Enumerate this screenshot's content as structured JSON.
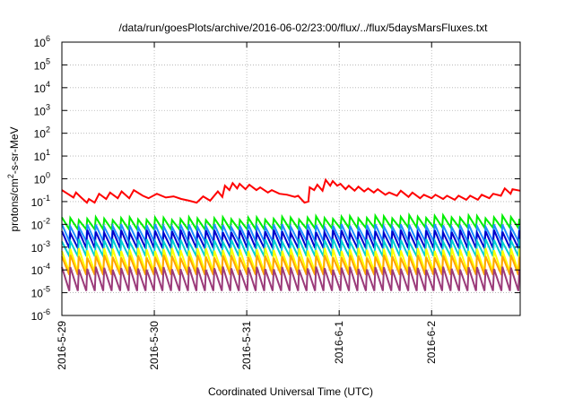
{
  "chart_data": {
    "type": "line",
    "title": "/data/run/goesPlots/archive/2016-06-02/23:00/flux/../flux/5daysMarsFluxes.txt",
    "xlabel": "Coordinated Universal Time (UTC)",
    "ylabel": {
      "prefix": "protons/cm",
      "sup": "2",
      "suffix": "-s-sr-MeV"
    },
    "y_scale": "log",
    "ylim": [
      1e-06,
      1000000.0
    ],
    "y_ticks": [
      {
        "value": 1e-06,
        "base": "10",
        "exp": "-6"
      },
      {
        "value": 1e-05,
        "base": "10",
        "exp": "-5"
      },
      {
        "value": 0.0001,
        "base": "10",
        "exp": "-4"
      },
      {
        "value": 0.001,
        "base": "10",
        "exp": "-3"
      },
      {
        "value": 0.01,
        "base": "10",
        "exp": "-2"
      },
      {
        "value": 0.1,
        "base": "10",
        "exp": "-1"
      },
      {
        "value": 1,
        "base": "10",
        "exp": "0"
      },
      {
        "value": 10.0,
        "base": "10",
        "exp": "1"
      },
      {
        "value": 100.0,
        "base": "10",
        "exp": "2"
      },
      {
        "value": 1000.0,
        "base": "10",
        "exp": "3"
      },
      {
        "value": 10000.0,
        "base": "10",
        "exp": "4"
      },
      {
        "value": 100000.0,
        "base": "10",
        "exp": "5"
      },
      {
        "value": 1000000.0,
        "base": "10",
        "exp": "6"
      }
    ],
    "x_range": [
      "2016-05-29T00:00",
      "2016-06-02T23:00"
    ],
    "x_ticks": [
      {
        "date": "2016-05-29T00:00",
        "label": "2016-5-29"
      },
      {
        "date": "2016-05-30T00:00",
        "label": "2016-5-30"
      },
      {
        "date": "2016-05-31T00:00",
        "label": "2016-5-31"
      },
      {
        "date": "2016-06-01T00:00",
        "label": "2016-6-1"
      },
      {
        "date": "2016-06-02T00:00",
        "label": "2016-6-2"
      }
    ],
    "grid": true,
    "legend": "none",
    "series": [
      {
        "color": "#ff0000",
        "points": [
          [
            "2016-05-29T00:00",
            0.32
          ],
          [
            "2016-05-29T01:30",
            0.22
          ],
          [
            "2016-05-29T03:00",
            0.15
          ],
          [
            "2016-05-29T03:40",
            0.25
          ],
          [
            "2016-05-29T05:00",
            0.15
          ],
          [
            "2016-05-29T06:30",
            0.09
          ],
          [
            "2016-05-29T07:00",
            0.13
          ],
          [
            "2016-05-29T08:30",
            0.09
          ],
          [
            "2016-05-29T09:40",
            0.22
          ],
          [
            "2016-05-29T11:30",
            0.13
          ],
          [
            "2016-05-29T12:30",
            0.25
          ],
          [
            "2016-05-29T14:30",
            0.14
          ],
          [
            "2016-05-29T15:30",
            0.28
          ],
          [
            "2016-05-29T17:30",
            0.14
          ],
          [
            "2016-05-29T18:40",
            0.32
          ],
          [
            "2016-05-29T21:00",
            0.18
          ],
          [
            "2016-05-29T22:30",
            0.14
          ],
          [
            "2016-05-30T00:40",
            0.22
          ],
          [
            "2016-05-30T03:00",
            0.15
          ],
          [
            "2016-05-30T05:00",
            0.17
          ],
          [
            "2016-05-30T07:00",
            0.13
          ],
          [
            "2016-05-30T09:00",
            0.11
          ],
          [
            "2016-05-30T11:00",
            0.09
          ],
          [
            "2016-05-30T12:40",
            0.17
          ],
          [
            "2016-05-30T14:30",
            0.11
          ],
          [
            "2016-05-30T16:30",
            0.28
          ],
          [
            "2016-05-30T17:40",
            0.16
          ],
          [
            "2016-05-30T18:20",
            0.5
          ],
          [
            "2016-05-30T19:30",
            0.32
          ],
          [
            "2016-05-30T20:20",
            0.65
          ],
          [
            "2016-05-30T21:30",
            0.38
          ],
          [
            "2016-05-30T22:10",
            0.6
          ],
          [
            "2016-05-30T23:40",
            0.35
          ],
          [
            "2016-05-31T00:40",
            0.55
          ],
          [
            "2016-05-31T02:30",
            0.32
          ],
          [
            "2016-05-31T03:30",
            0.42
          ],
          [
            "2016-05-31T05:30",
            0.25
          ],
          [
            "2016-05-31T06:30",
            0.32
          ],
          [
            "2016-05-31T08:30",
            0.22
          ],
          [
            "2016-05-31T10:30",
            0.2
          ],
          [
            "2016-05-31T12:30",
            0.16
          ],
          [
            "2016-05-31T13:20",
            0.18
          ],
          [
            "2016-05-31T15:00",
            0.09
          ],
          [
            "2016-05-31T16:00",
            0.1
          ],
          [
            "2016-05-31T16:20",
            0.42
          ],
          [
            "2016-05-31T17:30",
            0.32
          ],
          [
            "2016-05-31T18:20",
            0.55
          ],
          [
            "2016-05-31T19:40",
            0.3
          ],
          [
            "2016-05-31T20:30",
            0.9
          ],
          [
            "2016-05-31T21:40",
            0.5
          ],
          [
            "2016-05-31T22:20",
            0.8
          ],
          [
            "2016-05-31T23:30",
            0.5
          ],
          [
            "2016-06-01T00:20",
            0.6
          ],
          [
            "2016-06-01T01:40",
            0.35
          ],
          [
            "2016-06-01T02:30",
            0.5
          ],
          [
            "2016-06-01T04:00",
            0.3
          ],
          [
            "2016-06-01T05:00",
            0.45
          ],
          [
            "2016-06-01T06:30",
            0.28
          ],
          [
            "2016-06-01T07:30",
            0.38
          ],
          [
            "2016-06-01T09:00",
            0.25
          ],
          [
            "2016-06-01T10:00",
            0.35
          ],
          [
            "2016-06-01T12:00",
            0.2
          ],
          [
            "2016-06-01T13:00",
            0.25
          ],
          [
            "2016-06-01T15:00",
            0.18
          ],
          [
            "2016-06-01T16:00",
            0.3
          ],
          [
            "2016-06-01T18:00",
            0.16
          ],
          [
            "2016-06-01T19:00",
            0.25
          ],
          [
            "2016-06-01T21:00",
            0.14
          ],
          [
            "2016-06-01T22:00",
            0.2
          ],
          [
            "2016-06-02T00:00",
            0.14
          ],
          [
            "2016-06-02T01:00",
            0.2
          ],
          [
            "2016-06-02T03:00",
            0.13
          ],
          [
            "2016-06-02T04:00",
            0.18
          ],
          [
            "2016-06-02T06:00",
            0.12
          ],
          [
            "2016-06-02T07:00",
            0.18
          ],
          [
            "2016-06-02T09:00",
            0.12
          ],
          [
            "2016-06-02T10:00",
            0.18
          ],
          [
            "2016-06-02T12:00",
            0.12
          ],
          [
            "2016-06-02T13:00",
            0.2
          ],
          [
            "2016-06-02T15:00",
            0.14
          ],
          [
            "2016-06-02T16:00",
            0.22
          ],
          [
            "2016-06-02T18:00",
            0.18
          ],
          [
            "2016-06-02T19:00",
            0.38
          ],
          [
            "2016-06-02T20:30",
            0.22
          ],
          [
            "2016-06-02T21:00",
            0.35
          ],
          [
            "2016-06-02T23:00",
            0.3
          ]
        ]
      },
      {
        "color": "#00ee00",
        "oscillation": {
          "period_hours": 2.2,
          "peak": 0.018,
          "trough": 0.006,
          "trend": [
            [
              "2016-05-29T00:00",
              1.0
            ],
            [
              "2016-05-31T00:00",
              1.0
            ],
            [
              "2016-06-02T00:00",
              1.25
            ],
            [
              "2016-06-02T23:00",
              1.15
            ]
          ]
        }
      },
      {
        "color": "#1e90ff",
        "oscillation": {
          "period_hours": 2.2,
          "peak": 0.009,
          "trough": 0.0018
        }
      },
      {
        "color": "#0000cd",
        "oscillation": {
          "period_hours": 2.2,
          "peak": 0.005,
          "trough": 0.0009
        }
      },
      {
        "color": "#00ced1",
        "oscillation": {
          "period_hours": 2.2,
          "peak": 0.002,
          "trough": 0.0004
        }
      },
      {
        "color": "#ffff00",
        "oscillation": {
          "period_hours": 2.2,
          "peak": 0.0008,
          "trough": 8e-05
        }
      },
      {
        "color": "#ffa500",
        "oscillation": {
          "period_hours": 2.2,
          "peak": 0.0004,
          "trough": 6e-05
        }
      },
      {
        "color": "#9b3b7a",
        "oscillation": {
          "period_hours": 2.2,
          "peak": 0.00012,
          "trough": 1.2e-05
        }
      }
    ]
  }
}
